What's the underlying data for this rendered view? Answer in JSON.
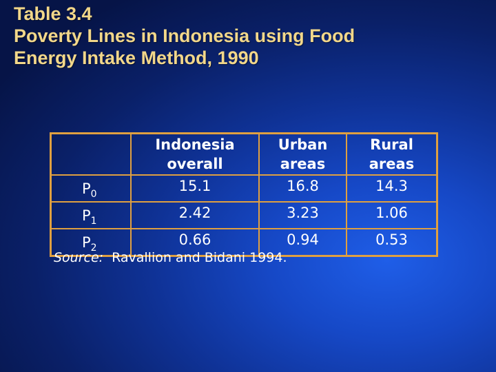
{
  "title": {
    "line1": "Table 3.4",
    "line2": "Poverty Lines in Indonesia using Food",
    "line3": "Energy Intake Method, 1990"
  },
  "table": {
    "headers": [
      {
        "line1": "Indonesia",
        "line2": "overall"
      },
      {
        "line1": "Urban",
        "line2": "areas"
      },
      {
        "line1": "Rural",
        "line2": "areas"
      }
    ],
    "rows": [
      {
        "label": "P",
        "sub": "0",
        "values": [
          "15.1",
          "16.8",
          "14.3"
        ]
      },
      {
        "label": "P",
        "sub": "1",
        "values": [
          "2.42",
          "3.23",
          "1.06"
        ]
      },
      {
        "label": "P",
        "sub": "2",
        "values": [
          "0.66",
          "0.94",
          "0.53"
        ]
      }
    ]
  },
  "source": {
    "label": "Source:",
    "text": "Ravallion and Bidani 1994."
  }
}
